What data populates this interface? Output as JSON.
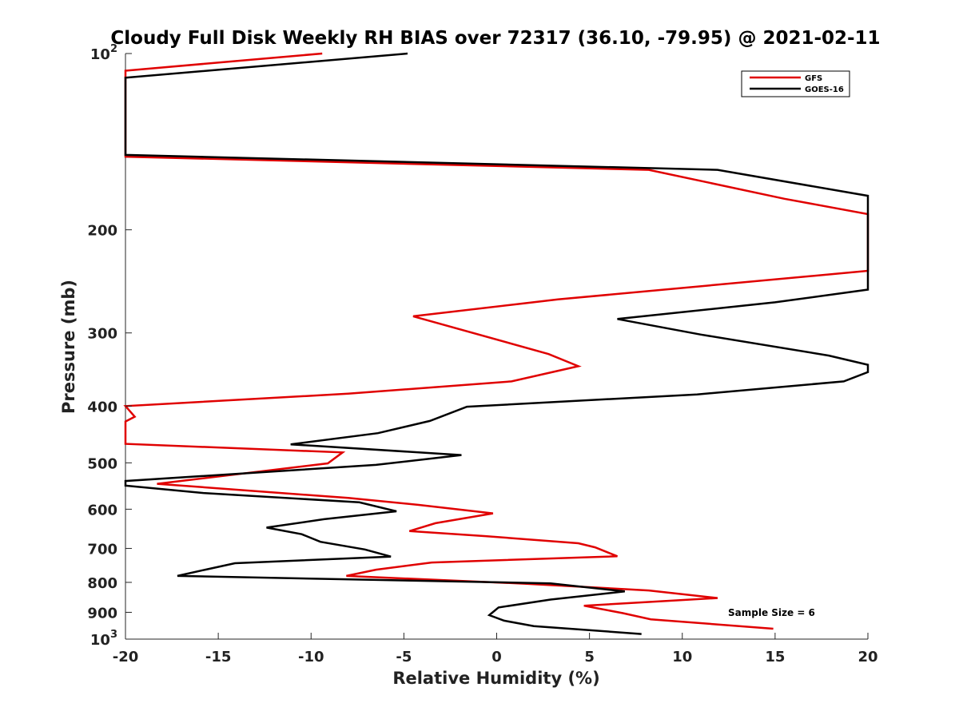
{
  "chart_data": {
    "type": "line",
    "title": "Cloudy Full Disk Weekly RH BIAS over 72317 (36.10, -79.95) @ 2021-02-11",
    "xlabel": "Relative Humidity (%)",
    "ylabel": "Pressure (mb)",
    "xlim": [
      -20,
      20
    ],
    "ylim": [
      100,
      1000
    ],
    "y_scale": "log",
    "y_reversed": true,
    "x_ticks": [
      -20,
      -15,
      -10,
      -5,
      0,
      5,
      10,
      15,
      20
    ],
    "x_tick_labels": [
      "-20",
      "-15",
      "-10",
      "-5",
      "0",
      "5",
      "10",
      "15",
      "20"
    ],
    "y_ticks": [
      100,
      200,
      300,
      400,
      500,
      600,
      700,
      800,
      900,
      1000
    ],
    "y_tick_labels": [
      {
        "base": "10",
        "exp": "2"
      },
      {
        "base": "200",
        "exp": ""
      },
      {
        "base": "300",
        "exp": ""
      },
      {
        "base": "400",
        "exp": ""
      },
      {
        "base": "500",
        "exp": ""
      },
      {
        "base": "600",
        "exp": ""
      },
      {
        "base": "700",
        "exp": ""
      },
      {
        "base": "800",
        "exp": ""
      },
      {
        "base": "900",
        "exp": ""
      },
      {
        "base": "10",
        "exp": "3"
      }
    ],
    "grid": false,
    "legend_position": "top-right",
    "annotation": "Sample Size = 6",
    "series": [
      {
        "name": "GFS",
        "color": "#e00000",
        "points": [
          [
            -9.4,
            100
          ],
          [
            -20,
            107
          ],
          [
            -20,
            150
          ],
          [
            8.2,
            158
          ],
          [
            15.5,
            177
          ],
          [
            20,
            188
          ],
          [
            20,
            235
          ],
          [
            3.3,
            263
          ],
          [
            -4.5,
            281
          ],
          [
            2.8,
            326
          ],
          [
            4.4,
            342
          ],
          [
            0.8,
            363
          ],
          [
            -8,
            381
          ],
          [
            -20,
            400
          ],
          [
            -19.5,
            417
          ],
          [
            -20,
            425
          ],
          [
            -20,
            464
          ],
          [
            -8.3,
            480
          ],
          [
            -9.1,
            501
          ],
          [
            -18.3,
            543
          ],
          [
            -8,
            574
          ],
          [
            -4.2,
            590
          ],
          [
            -0.2,
            610
          ],
          [
            -3.3,
            634
          ],
          [
            -4.7,
            654
          ],
          [
            -0.6,
            667
          ],
          [
            4.4,
            686
          ],
          [
            5.3,
            697
          ],
          [
            6.5,
            722
          ],
          [
            -3.5,
            740
          ],
          [
            -6.5,
            761
          ],
          [
            -8.1,
            780
          ],
          [
            1.5,
            804
          ],
          [
            8.2,
            826
          ],
          [
            11.9,
            851
          ],
          [
            4.7,
            877
          ],
          [
            6.8,
            903
          ],
          [
            8.3,
            925
          ],
          [
            14.9,
            960
          ]
        ]
      },
      {
        "name": "GOES-16",
        "color": "#000000",
        "points": [
          [
            -4.8,
            100
          ],
          [
            -20,
            110
          ],
          [
            -20,
            149
          ],
          [
            11.9,
            158
          ],
          [
            20,
            175
          ],
          [
            20,
            253
          ],
          [
            15,
            266
          ],
          [
            6.5,
            284
          ],
          [
            11,
            302
          ],
          [
            17.9,
            328
          ],
          [
            20,
            340
          ],
          [
            20,
            350
          ],
          [
            18.7,
            363
          ],
          [
            10.8,
            382
          ],
          [
            -1.6,
            401
          ],
          [
            -3.6,
            424
          ],
          [
            -6.4,
            445
          ],
          [
            -11.1,
            465
          ],
          [
            -1.9,
            485
          ],
          [
            -6.5,
            504
          ],
          [
            -20,
            537
          ],
          [
            -20,
            547
          ],
          [
            -15.8,
            563
          ],
          [
            -7.4,
            584
          ],
          [
            -5.4,
            605
          ],
          [
            -9.3,
            624
          ],
          [
            -12.4,
            645
          ],
          [
            -10.5,
            662
          ],
          [
            -9.5,
            682
          ],
          [
            -7.1,
            703
          ],
          [
            -5.7,
            723
          ],
          [
            -14.1,
            742
          ],
          [
            -15.7,
            761
          ],
          [
            -17.2,
            780
          ],
          [
            2.9,
            803
          ],
          [
            6.9,
            829
          ],
          [
            2.9,
            856
          ],
          [
            0.1,
            883
          ],
          [
            -0.4,
            910
          ],
          [
            0.4,
            930
          ],
          [
            2,
            950
          ],
          [
            7.8,
            980
          ]
        ]
      }
    ]
  }
}
